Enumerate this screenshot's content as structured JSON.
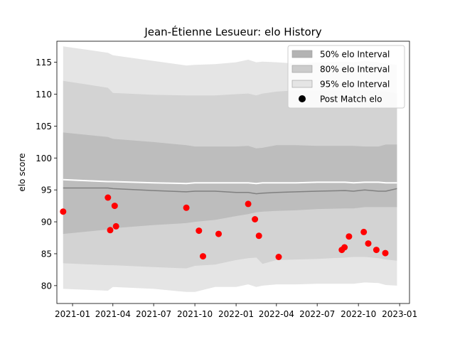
{
  "chart_data": {
    "type": "line",
    "title": "Jean-Étienne Lesueur: elo History",
    "xlabel": "",
    "ylabel": "elo score",
    "xlim": [
      "2020-11-27",
      "2023-01-23"
    ],
    "ylim": [
      77.2,
      118.3
    ],
    "x_ticks": [
      "2021-01",
      "2021-04",
      "2021-07",
      "2021-10",
      "2022-01",
      "2022-04",
      "2022-07",
      "2022-10",
      "2023-01"
    ],
    "x_tick_dates": [
      "2021-01-01",
      "2021-04-01",
      "2021-07-01",
      "2021-10-01",
      "2022-01-01",
      "2022-04-01",
      "2022-07-01",
      "2022-10-01",
      "2023-01-01"
    ],
    "y_ticks": [
      80,
      85,
      90,
      95,
      100,
      105,
      110,
      115
    ],
    "grid": false,
    "legend_position": "top-right",
    "legend": [
      {
        "label": "50% elo Interval",
        "kind": "patch",
        "color": "#b3b3b3"
      },
      {
        "label": "80% elo Interval",
        "kind": "patch",
        "color": "#cccccc"
      },
      {
        "label": "95% elo Interval",
        "kind": "patch",
        "color": "#e5e5e5"
      },
      {
        "label": "Post Match elo",
        "kind": "marker",
        "color": "#000000"
      }
    ],
    "colors": {
      "interval_50": "#bdbdbd",
      "interval_80": "#d3d3d3",
      "interval_95": "#e5e5e5",
      "mean_line": "#808080",
      "upper_line": "#ffffff",
      "points": "#ff0000"
    },
    "bands": {
      "dates": [
        "2020-12-11",
        "2021-03-21",
        "2021-04-01",
        "2021-07-01",
        "2021-09-12",
        "2021-10-01",
        "2021-11-15",
        "2022-01-01",
        "2022-01-28",
        "2022-02-15",
        "2022-03-01",
        "2022-04-01",
        "2022-05-15",
        "2022-07-01",
        "2022-09-01",
        "2022-09-20",
        "2022-10-15",
        "2022-11-15",
        "2022-12-01",
        "2022-12-26"
      ],
      "mean": [
        95.3,
        95.3,
        95.2,
        94.9,
        94.7,
        94.8,
        94.8,
        94.6,
        94.6,
        94.4,
        94.5,
        94.6,
        94.7,
        94.8,
        94.9,
        94.8,
        95.0,
        94.8,
        94.8,
        95.2
      ],
      "upper_line": [
        96.6,
        96.3,
        96.3,
        96.1,
        96.0,
        96.1,
        96.1,
        96.1,
        96.1,
        96.0,
        96.1,
        96.1,
        96.1,
        96.2,
        96.2,
        96.1,
        96.2,
        96.2,
        96.1,
        96.1
      ],
      "p50_low": [
        88.1,
        88.8,
        89.0,
        89.5,
        89.8,
        90.0,
        90.3,
        90.9,
        91.2,
        91.5,
        91.6,
        91.7,
        91.8,
        92.0,
        92.1,
        92.1,
        92.3,
        92.3,
        92.3,
        92.3
      ],
      "p50_high": [
        104.0,
        103.3,
        103.0,
        102.5,
        102.0,
        101.8,
        101.8,
        101.8,
        101.9,
        101.5,
        101.6,
        102.0,
        102.0,
        101.9,
        101.9,
        101.9,
        101.8,
        101.8,
        102.1,
        102.1
      ],
      "p80_low": [
        83.5,
        83.2,
        83.2,
        82.9,
        82.7,
        83.1,
        83.3,
        84.0,
        84.3,
        84.4,
        83.4,
        84.0,
        84.1,
        84.2,
        84.4,
        84.5,
        84.5,
        84.3,
        84.1,
        83.9
      ],
      "p80_high": [
        112.1,
        111.0,
        110.2,
        109.9,
        109.8,
        109.8,
        109.8,
        110.0,
        110.1,
        109.8,
        110.1,
        110.4,
        110.6,
        110.6,
        110.6,
        110.6,
        110.6,
        110.4,
        110.4,
        110.1
      ],
      "p95_low": [
        79.5,
        79.2,
        79.8,
        79.5,
        79.0,
        79.0,
        79.8,
        79.8,
        80.2,
        79.8,
        80.0,
        80.2,
        80.2,
        80.3,
        80.3,
        80.3,
        80.5,
        80.4,
        80.1,
        80.0
      ],
      "p95_high": [
        117.5,
        116.5,
        116.1,
        115.2,
        114.5,
        114.6,
        114.7,
        115.0,
        115.4,
        115.0,
        115.1,
        115.0,
        114.8,
        115.0,
        115.1,
        115.0,
        115.2,
        115.0,
        114.8,
        114.6
      ]
    },
    "series": [
      {
        "name": "Post Match elo",
        "kind": "scatter",
        "points": [
          {
            "x": "2020-12-11",
            "y": 91.6
          },
          {
            "x": "2021-03-21",
            "y": 93.8
          },
          {
            "x": "2021-03-26",
            "y": 88.7
          },
          {
            "x": "2021-04-05",
            "y": 92.5
          },
          {
            "x": "2021-04-08",
            "y": 89.3
          },
          {
            "x": "2021-09-12",
            "y": 92.2
          },
          {
            "x": "2021-10-10",
            "y": 88.6
          },
          {
            "x": "2021-10-19",
            "y": 84.6
          },
          {
            "x": "2021-11-23",
            "y": 88.1
          },
          {
            "x": "2022-01-28",
            "y": 92.8
          },
          {
            "x": "2022-02-12",
            "y": 90.4
          },
          {
            "x": "2022-02-21",
            "y": 87.8
          },
          {
            "x": "2022-04-06",
            "y": 84.5
          },
          {
            "x": "2022-08-25",
            "y": 85.6
          },
          {
            "x": "2022-08-31",
            "y": 86.0
          },
          {
            "x": "2022-09-10",
            "y": 87.7
          },
          {
            "x": "2022-10-13",
            "y": 88.4
          },
          {
            "x": "2022-10-23",
            "y": 86.6
          },
          {
            "x": "2022-11-10",
            "y": 85.6
          },
          {
            "x": "2022-11-30",
            "y": 85.1
          }
        ]
      }
    ]
  }
}
